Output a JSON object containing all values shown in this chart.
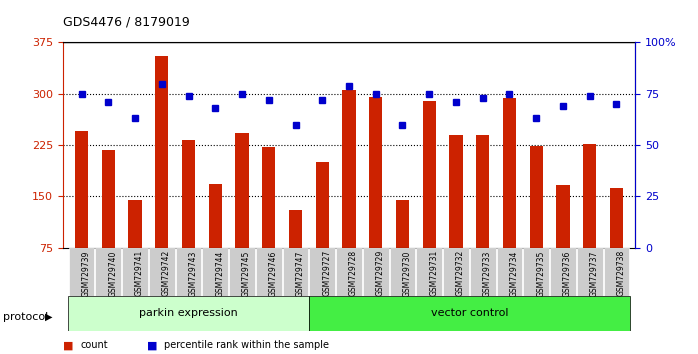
{
  "title": "GDS4476 / 8179019",
  "samples": [
    "GSM729739",
    "GSM729740",
    "GSM729741",
    "GSM729742",
    "GSM729743",
    "GSM729744",
    "GSM729745",
    "GSM729746",
    "GSM729747",
    "GSM729727",
    "GSM729728",
    "GSM729729",
    "GSM729730",
    "GSM729731",
    "GSM729732",
    "GSM729733",
    "GSM729734",
    "GSM729735",
    "GSM729736",
    "GSM729737",
    "GSM729738"
  ],
  "counts": [
    245,
    218,
    145,
    355,
    232,
    168,
    243,
    222,
    130,
    200,
    305,
    295,
    145,
    290,
    240,
    240,
    294,
    224,
    167,
    227,
    163
  ],
  "percentiles": [
    75,
    71,
    63,
    80,
    74,
    68,
    75,
    72,
    60,
    72,
    79,
    75,
    60,
    75,
    71,
    73,
    75,
    63,
    69,
    74,
    70
  ],
  "parkin_count": 9,
  "vector_count": 12,
  "bar_color": "#cc2200",
  "dot_color": "#0000cc",
  "ylim_left": [
    75,
    375
  ],
  "ylim_right": [
    0,
    100
  ],
  "yticks_left": [
    75,
    150,
    225,
    300,
    375
  ],
  "yticks_right": [
    0,
    25,
    50,
    75,
    100
  ],
  "grid_values": [
    150,
    225,
    300
  ],
  "parkin_label": "parkin expression",
  "vector_label": "vector control",
  "protocol_label": "protocol",
  "legend_count": "count",
  "legend_percentile": "percentile rank within the sample",
  "parkin_color": "#ccffcc",
  "vector_color": "#44ee44",
  "background_color": "#ffffff",
  "plot_bg_color": "#ffffff",
  "label_area_color": "#cccccc"
}
